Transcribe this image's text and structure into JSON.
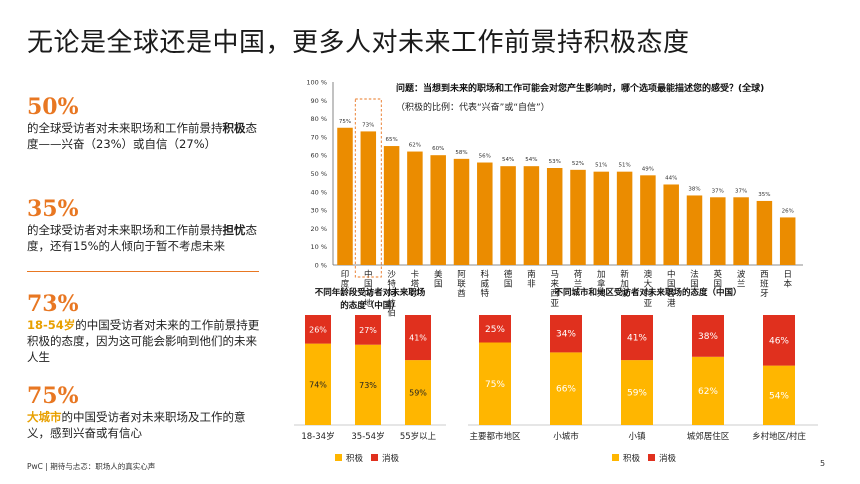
{
  "page": {
    "title": "无论是全球还是中国，更多人对未来工作前景持积极态度",
    "footer": "PwC | 期待与忐忑：职场人的真实心声",
    "page_number": "5"
  },
  "stats": [
    {
      "num": "50%",
      "pre": "的全球受访者对未来职场和工作前景持",
      "bold": "积极",
      "post": "态度——兴奋（23%）或自信（27%）"
    },
    {
      "num": "35%",
      "pre": "的全球受访者对未来职场和工作前景持",
      "bold": "担忧",
      "post": "态度，还有15%的人倾向于暂不考虑未来"
    },
    {
      "num": "73%",
      "hl": "18-54岁",
      "post": "的中国受访者对未来的工作前景持更积极的态度，因为这可能会影响到他们的未来人生"
    },
    {
      "num": "75%",
      "hl": "大城市",
      "post": "的中国受访者对未来职场及工作的意义，感到兴奋或有信心"
    }
  ],
  "chart_data": [
    {
      "type": "bar",
      "title": "问题：当想到未来的职场和工作可能会对您产生影响时，哪个选项最能描述您的感受？(全球)",
      "subtitle": "（积极的比例：代表“兴奋”或“自信”）",
      "categories": [
        "印度",
        "中国内地",
        "沙特阿拉伯",
        "卡塔尔",
        "美国",
        "阿联酋",
        "科威特",
        "德国",
        "南非",
        "马来西亚",
        "荷兰",
        "加拿大",
        "新加坡",
        "澳大利亚",
        "中国香港",
        "法国",
        "英国",
        "波兰",
        "西班牙",
        "日本"
      ],
      "values": [
        75,
        73,
        65,
        62,
        60,
        58,
        56,
        54,
        54,
        53,
        52,
        51,
        51,
        49,
        44,
        38,
        37,
        37,
        35,
        26
      ],
      "value_labels": [
        "75%",
        "73%",
        "65%",
        "62%",
        "60%",
        "58%",
        "56%",
        "54%",
        "54%",
        "53%",
        "52%",
        "51%",
        "51%",
        "49%",
        "44%",
        "38%",
        "37%",
        "37%",
        "35%",
        "26%"
      ],
      "yticks": [
        "0 %",
        "10 %",
        "20 %",
        "30 %",
        "40 %",
        "50 %",
        "60 %",
        "70 %",
        "80 %",
        "90 %",
        "100 %"
      ],
      "ylim": [
        0,
        100
      ],
      "highlight": "中国内地",
      "grid": false
    },
    {
      "type": "bar",
      "stacked": true,
      "title": "不同年龄段受访者对未来职场的态度（中国）",
      "categories": [
        "18-34岁",
        "35-54岁",
        "55岁以上"
      ],
      "series": [
        {
          "name": "积极",
          "values": [
            74,
            73,
            59
          ],
          "labels": [
            "74%",
            "73%",
            "59%"
          ]
        },
        {
          "name": "消极",
          "values": [
            26,
            27,
            41
          ],
          "labels": [
            "26%",
            "27%",
            "41%"
          ]
        }
      ],
      "legend": "bottom"
    },
    {
      "type": "bar",
      "stacked": true,
      "title": "不同城市和地区受访者对未来职场的态度（中国）",
      "categories": [
        "主要都市地区",
        "小城市",
        "小镇",
        "城郊居住区",
        "乡村地区/村庄"
      ],
      "series": [
        {
          "name": "积极",
          "values": [
            75,
            66,
            59,
            62,
            54
          ],
          "labels": [
            "75%",
            "66%",
            "59%",
            "62%",
            "54%"
          ]
        },
        {
          "name": "消极",
          "values": [
            25,
            34,
            41,
            38,
            46
          ],
          "labels": [
            "25%",
            "34%",
            "41%",
            "38%",
            "46%"
          ]
        }
      ],
      "legend": "bottom"
    }
  ],
  "colors": {
    "accent_orange": "#E87722",
    "bar_orange": "#EB8C00",
    "positive_yellow": "#FFB600",
    "negative_red": "#E0301E",
    "highlight_yellow": "#E8A000"
  }
}
